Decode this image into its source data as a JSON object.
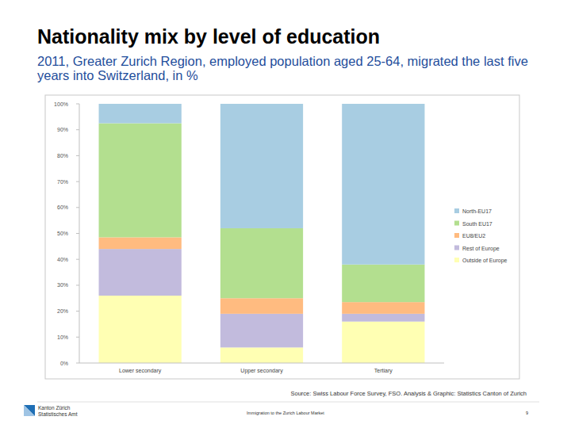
{
  "chart_data": {
    "type": "bar",
    "stacked": true,
    "title": "Nationality mix by level of education",
    "subtitle": "2011, Greater Zurich Region, employed population aged 25-64, migrated the last five years into Switzerland, in %",
    "categories": [
      "Lower secondary",
      "Upper secondary",
      "Tertiary"
    ],
    "series": [
      {
        "name": "Outside of Europe",
        "color": "#ffffb3",
        "values": [
          26,
          6,
          16
        ]
      },
      {
        "name": "Rest of Europe",
        "color": "#c2bbdd",
        "values": [
          18,
          13,
          3
        ]
      },
      {
        "name": "EU8/EU2",
        "color": "#ffbb80",
        "values": [
          4.5,
          6,
          4.5
        ]
      },
      {
        "name": "South EU17",
        "color": "#b3df8f",
        "values": [
          44,
          27,
          14.5
        ]
      },
      {
        "name": "North-EU17",
        "color": "#a8cde2",
        "values": [
          7.5,
          48,
          62
        ]
      }
    ],
    "ylim": [
      0,
      100
    ],
    "yticks": [
      {
        "value": 0,
        "label": "0%"
      },
      {
        "value": 10,
        "label": "10%"
      },
      {
        "value": 20,
        "label": "20%"
      },
      {
        "value": 30,
        "label": "30%"
      },
      {
        "value": 40,
        "label": "40%"
      },
      {
        "value": 50,
        "label": "50%"
      },
      {
        "value": 60,
        "label": "60%"
      },
      {
        "value": 70,
        "label": "70%"
      },
      {
        "value": 80,
        "label": "80%"
      },
      {
        "value": 90,
        "label": "90%"
      },
      {
        "value": 100,
        "label": "100%"
      }
    ],
    "grid": false,
    "legend": "right"
  },
  "page": {
    "source": "Source: Swiss Labour Force Survey, FSO. Analysis & Graphic: Statistics Canton of Zurich",
    "footer": "Immigration to the Zurich Labour Market",
    "page_number": "9",
    "logo": [
      "Kanton Zürich",
      "Statistisches Amt"
    ]
  }
}
